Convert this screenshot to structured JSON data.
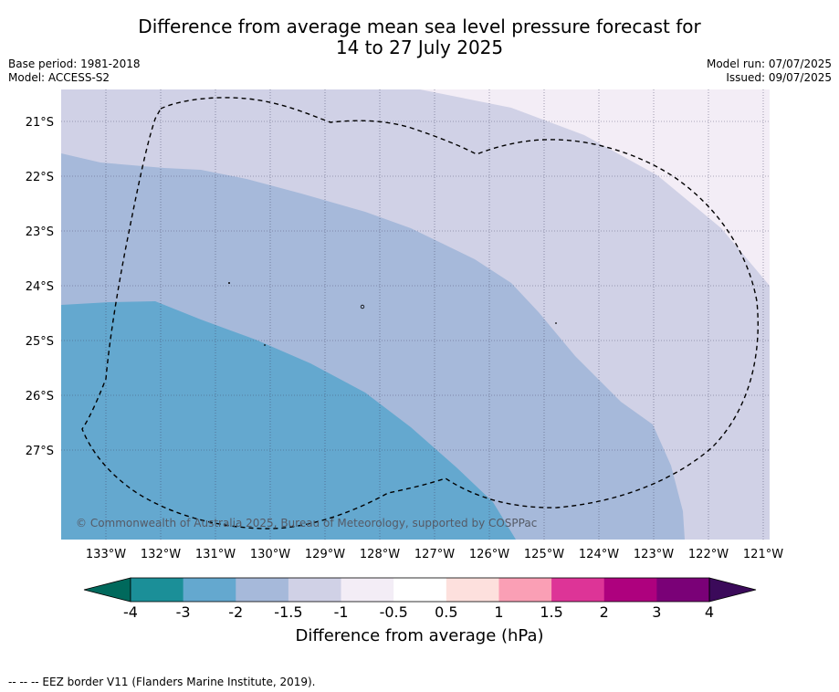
{
  "title_line1": "Difference from average mean sea level pressure forecast for",
  "title_line2": "14 to 27 July 2025",
  "base_period": "Base period: 1981-2018",
  "model": "Model: ACCESS-S2",
  "model_run": "Model run: 07/07/2025",
  "issued": "Issued: 09/07/2025",
  "copyright": "© Commonwealth of Australia 2025, Bureau of Meteorology, supported by COSPPac",
  "lat_labels": [
    "21°S",
    "22°S",
    "23°S",
    "24°S",
    "25°S",
    "26°S",
    "27°S"
  ],
  "lon_labels": [
    "133°W",
    "132°W",
    "131°W",
    "130°W",
    "129°W",
    "128°W",
    "127°W",
    "126°W",
    "125°W",
    "124°W",
    "123°W",
    "122°W",
    "121°W"
  ],
  "colorbar": {
    "title": "Difference from average (hPa)",
    "tick_labels": [
      "-4",
      "-3",
      "-2",
      "-1.5",
      "-1",
      "-0.5",
      "0.5",
      "1",
      "1.5",
      "2",
      "3",
      "4"
    ],
    "under_color": "#00695c",
    "over_color": "#3b0a5a",
    "colors": [
      "#1b8f98",
      "#64a8cf",
      "#a6b9da",
      "#d0d1e6",
      "#f3edf6",
      "#ffffff",
      "#fde0dd",
      "#fa9fb5",
      "#dd3497",
      "#ae017e",
      "#7a0177"
    ]
  },
  "footnote": "--  --  -- EEZ border V11 (Flanders Marine Institute, 2019)."
}
